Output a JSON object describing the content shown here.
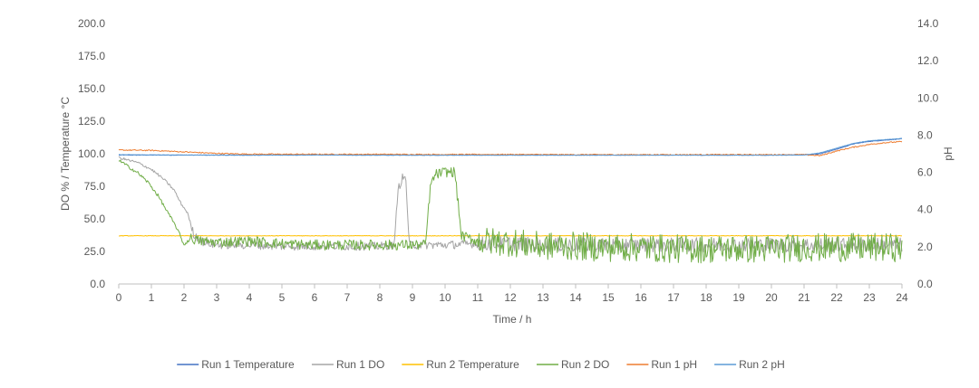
{
  "chart_data": {
    "type": "line",
    "title": "",
    "xlabel": "Time / h",
    "ylabel_left": "DO % / Temperature °C",
    "ylabel_right": "pH",
    "x_range": [
      0,
      24
    ],
    "y_left_range": [
      0,
      200
    ],
    "y_right_range": [
      0,
      14
    ],
    "grid": false,
    "legend_position": "bottom",
    "x_ticks": [
      "0",
      "1",
      "2",
      "3",
      "4",
      "5",
      "6",
      "7",
      "8",
      "9",
      "10",
      "11",
      "12",
      "13",
      "14",
      "15",
      "16",
      "17",
      "18",
      "19",
      "20",
      "21",
      "22",
      "23",
      "24"
    ],
    "y_left_ticks": [
      "0.0",
      "25.0",
      "50.0",
      "75.0",
      "100.0",
      "125.0",
      "150.0",
      "175.0",
      "200.0"
    ],
    "y_right_ticks": [
      "0.0",
      "2.0",
      "4.0",
      "6.0",
      "8.0",
      "10.0",
      "12.0",
      "14.0"
    ],
    "series": [
      {
        "name": "Run 1 Temperature",
        "axis": "left",
        "color": "#4472C4",
        "x": [
          0,
          2,
          4,
          6,
          8,
          10,
          12,
          14,
          16,
          18,
          20,
          21,
          21.5,
          22,
          22.5,
          23,
          23.5,
          24
        ],
        "y": [
          99.0,
          99.0,
          99.0,
          99.2,
          99.0,
          99.0,
          99.1,
          99.0,
          99.0,
          99.0,
          99.0,
          99.2,
          100.0,
          103.5,
          107.5,
          109.5,
          110.5,
          111.5
        ],
        "noise": 0.2
      },
      {
        "name": "Run 1 DO",
        "axis": "left",
        "color": "#A5A5A5",
        "x": [
          0,
          0.3,
          0.6,
          1.0,
          1.4,
          1.7,
          1.9,
          2.1,
          2.3,
          2.6,
          3,
          4,
          5,
          6,
          7,
          8,
          8.45,
          8.55,
          8.7,
          8.8,
          8.9,
          9.0,
          9.5,
          10,
          11,
          12,
          13,
          14,
          15,
          16,
          17,
          18,
          19,
          20,
          21,
          22,
          23,
          24
        ],
        "y": [
          97,
          95,
          93,
          88,
          80,
          72,
          62,
          55,
          38,
          32,
          30,
          30,
          29,
          29,
          29,
          29,
          30,
          72,
          82,
          80,
          30,
          30,
          30,
          30,
          31,
          31,
          30,
          30,
          30,
          30,
          30,
          30,
          30,
          30,
          30,
          30,
          30,
          30
        ],
        "noise": 4
      },
      {
        "name": "Run 2 Temperature",
        "axis": "left",
        "color": "#FFC000",
        "x": [
          0,
          4,
          8,
          12,
          16,
          20,
          24
        ],
        "y": [
          37.0,
          37.0,
          37.0,
          37.0,
          37.0,
          37.0,
          37.0
        ],
        "noise": 0.2
      },
      {
        "name": "Run 2 DO",
        "axis": "left",
        "color": "#70AD47",
        "x": [
          0,
          0.3,
          0.6,
          0.9,
          1.2,
          1.5,
          1.8,
          2.0,
          2.2,
          2.5,
          3,
          4,
          5,
          6,
          7,
          8,
          9,
          9.4,
          9.55,
          9.7,
          10.0,
          10.3,
          10.5,
          11,
          12,
          13,
          14,
          15,
          16,
          17,
          18,
          19,
          20,
          21,
          22,
          23,
          24
        ],
        "y": [
          95,
          90,
          85,
          78,
          68,
          55,
          42,
          30,
          35,
          33,
          32,
          33,
          31,
          30,
          30,
          30,
          30,
          30,
          75,
          84,
          86,
          86,
          37,
          33,
          32,
          29,
          29,
          28,
          28,
          27,
          27,
          27,
          27,
          28,
          28,
          28,
          28
        ],
        "noise": 5
      },
      {
        "name": "Run 1 pH",
        "axis": "right",
        "color": "#ED7D31",
        "x": [
          0,
          1,
          2,
          3,
          4,
          6,
          8,
          10,
          12,
          14,
          16,
          18,
          20,
          21,
          21.5,
          22,
          22.5,
          23,
          23.5,
          24
        ],
        "y": [
          7.2,
          7.18,
          7.1,
          7.02,
          6.98,
          6.97,
          6.97,
          6.96,
          6.96,
          6.95,
          6.95,
          6.95,
          6.95,
          6.95,
          6.9,
          7.15,
          7.35,
          7.5,
          7.6,
          7.65
        ],
        "noise": 0.03
      },
      {
        "name": "Run 2 pH",
        "axis": "right",
        "color": "#5B9BD5",
        "x": [
          0,
          2,
          4,
          6,
          8,
          10,
          12,
          14,
          16,
          18,
          20,
          21,
          21.5,
          22,
          22.5,
          23,
          23.5,
          24
        ],
        "y": [
          6.95,
          6.93,
          6.92,
          6.93,
          6.92,
          6.92,
          6.92,
          6.92,
          6.92,
          6.92,
          6.92,
          6.93,
          7.05,
          7.3,
          7.55,
          7.7,
          7.76,
          7.82
        ],
        "noise": 0.01
      }
    ]
  }
}
